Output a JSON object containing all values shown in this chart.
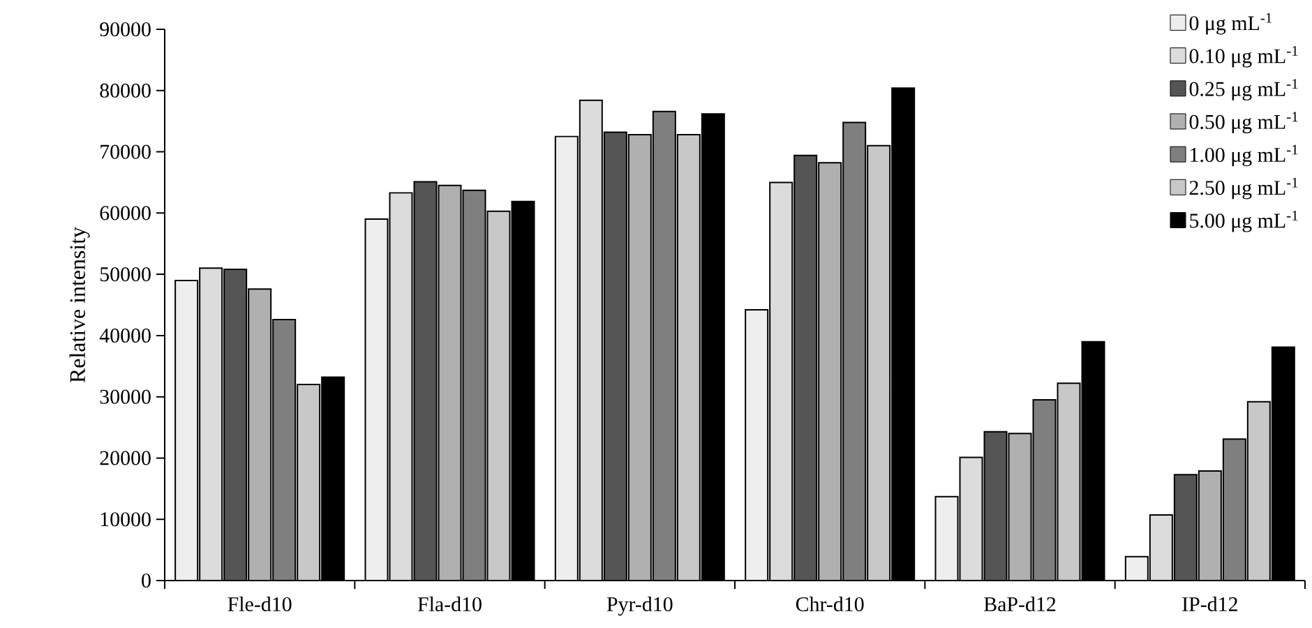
{
  "chart_data": {
    "type": "bar",
    "ylabel": "Relative intensity",
    "categories": [
      "Fle-d10",
      "Fla-d10",
      "Pyr-d10",
      "Chr-d10",
      "BaP-d12",
      "IP-d12"
    ],
    "series": [
      {
        "name": "0 μg mL$^{-1}$",
        "color": "#eeeeee",
        "values": [
          49000,
          59000,
          72500,
          44200,
          13700,
          3900
        ]
      },
      {
        "name": "0.10 μg mL$^{-1}$",
        "color": "#dcdcdc",
        "values": [
          51000,
          63300,
          78400,
          65000,
          20100,
          10700
        ]
      },
      {
        "name": "0.25 μg mL$^{-1}$",
        "color": "#555555",
        "values": [
          50800,
          65100,
          73200,
          69400,
          24300,
          17300
        ]
      },
      {
        "name": "0.50 μg mL$^{-1}$",
        "color": "#b0b0b0",
        "values": [
          47600,
          64500,
          72800,
          68200,
          24000,
          17900
        ]
      },
      {
        "name": "1.00 μg mL$^{-1}$",
        "color": "#7f7f7f",
        "values": [
          42600,
          63700,
          76600,
          74800,
          29500,
          23100
        ]
      },
      {
        "name": "2.50 μg mL$^{-1}$",
        "color": "#c8c8c8",
        "values": [
          32000,
          60300,
          72800,
          71000,
          32200,
          29200
        ]
      },
      {
        "name": "5.00 μg mL$^{-1}$",
        "color": "#000000",
        "values": [
          33200,
          61900,
          76200,
          80400,
          39000,
          38100
        ]
      }
    ],
    "ylim": [
      0,
      90000
    ],
    "yticks": [
      0,
      10000,
      20000,
      30000,
      40000,
      50000,
      60000,
      70000,
      80000,
      90000
    ],
    "legend": "top right"
  }
}
